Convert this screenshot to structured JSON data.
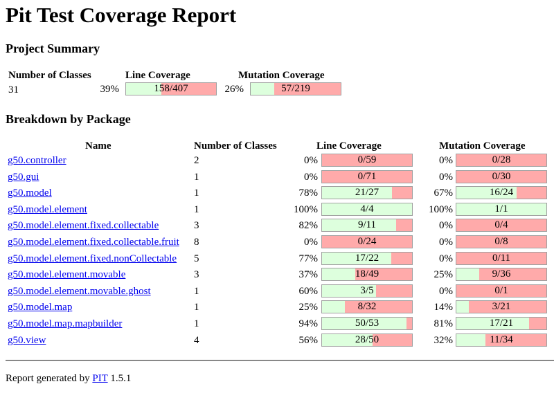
{
  "title": "Pit Test Coverage Report",
  "project_summary": {
    "heading": "Project Summary",
    "headers": {
      "classes": "Number of Classes",
      "line": "Line Coverage",
      "mutation": "Mutation Coverage"
    },
    "classes": "31",
    "line_pct": "39%",
    "line_text": "158/407",
    "line_fraction": 0.39,
    "mutation_pct": "26%",
    "mutation_text": "57/219",
    "mutation_fraction": 0.26
  },
  "breakdown": {
    "heading": "Breakdown by Package",
    "headers": {
      "name": "Name",
      "classes": "Number of Classes",
      "line": "Line Coverage",
      "mutation": "Mutation Coverage"
    },
    "rows": [
      {
        "name": "g50.controller",
        "classes": "2",
        "line_pct": "0%",
        "line_text": "0/59",
        "line_fraction": 0,
        "mut_pct": "0%",
        "mut_text": "0/28",
        "mut_fraction": 0
      },
      {
        "name": "g50.gui",
        "classes": "1",
        "line_pct": "0%",
        "line_text": "0/71",
        "line_fraction": 0,
        "mut_pct": "0%",
        "mut_text": "0/30",
        "mut_fraction": 0
      },
      {
        "name": "g50.model",
        "classes": "1",
        "line_pct": "78%",
        "line_text": "21/27",
        "line_fraction": 0.78,
        "mut_pct": "67%",
        "mut_text": "16/24",
        "mut_fraction": 0.67
      },
      {
        "name": "g50.model.element",
        "classes": "1",
        "line_pct": "100%",
        "line_text": "4/4",
        "line_fraction": 1,
        "mut_pct": "100%",
        "mut_text": "1/1",
        "mut_fraction": 1
      },
      {
        "name": "g50.model.element.fixed.collectable",
        "classes": "3",
        "line_pct": "82%",
        "line_text": "9/11",
        "line_fraction": 0.82,
        "mut_pct": "0%",
        "mut_text": "0/4",
        "mut_fraction": 0
      },
      {
        "name": "g50.model.element.fixed.collectable.fruit",
        "classes": "8",
        "line_pct": "0%",
        "line_text": "0/24",
        "line_fraction": 0,
        "mut_pct": "0%",
        "mut_text": "0/8",
        "mut_fraction": 0
      },
      {
        "name": "g50.model.element.fixed.nonCollectable",
        "classes": "5",
        "line_pct": "77%",
        "line_text": "17/22",
        "line_fraction": 0.77,
        "mut_pct": "0%",
        "mut_text": "0/11",
        "mut_fraction": 0
      },
      {
        "name": "g50.model.element.movable",
        "classes": "3",
        "line_pct": "37%",
        "line_text": "18/49",
        "line_fraction": 0.37,
        "mut_pct": "25%",
        "mut_text": "9/36",
        "mut_fraction": 0.25
      },
      {
        "name": "g50.model.element.movable.ghost",
        "classes": "1",
        "line_pct": "60%",
        "line_text": "3/5",
        "line_fraction": 0.6,
        "mut_pct": "0%",
        "mut_text": "0/1",
        "mut_fraction": 0
      },
      {
        "name": "g50.model.map",
        "classes": "1",
        "line_pct": "25%",
        "line_text": "8/32",
        "line_fraction": 0.25,
        "mut_pct": "14%",
        "mut_text": "3/21",
        "mut_fraction": 0.14
      },
      {
        "name": "g50.model.map.mapbuilder",
        "classes": "1",
        "line_pct": "94%",
        "line_text": "50/53",
        "line_fraction": 0.94,
        "mut_pct": "81%",
        "mut_text": "17/21",
        "mut_fraction": 0.81
      },
      {
        "name": "g50.view",
        "classes": "4",
        "line_pct": "56%",
        "line_text": "28/50",
        "line_fraction": 0.56,
        "mut_pct": "32%",
        "mut_text": "11/34",
        "mut_fraction": 0.32
      }
    ]
  },
  "footer": {
    "prefix": "Report generated by",
    "link": "PIT",
    "version": "1.5.1"
  },
  "colors": {
    "covered": "#ddffdd",
    "uncovered": "#ffaaaa",
    "link": "#0000ee"
  }
}
